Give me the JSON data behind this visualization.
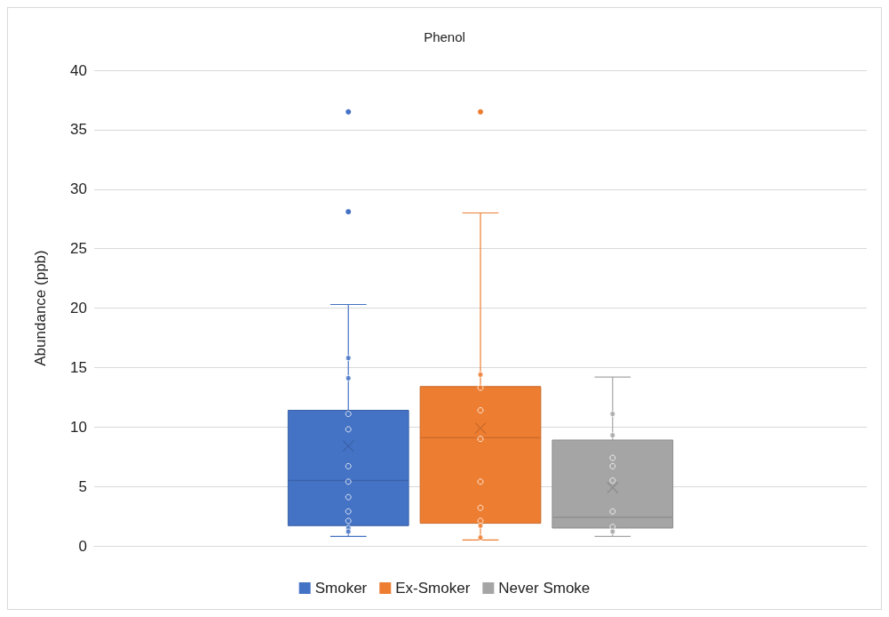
{
  "chart_data": {
    "type": "box",
    "title": "Phenol",
    "ylabel": "Abundance (ppb)",
    "categories": [
      null
    ],
    "ylim": [
      0,
      40
    ],
    "yticks": [
      0,
      5,
      10,
      15,
      20,
      25,
      30,
      35,
      40
    ],
    "grid": "y",
    "legend": "bottom",
    "marker": "circle",
    "series": [
      {
        "name": "Smoker",
        "color": "#4472c4",
        "boxes": [
          {
            "low": 0.8,
            "q1": 1.7,
            "median": 5.5,
            "q3": 11.4,
            "high": 20.3,
            "mean": 8.4,
            "outliers": [
              28.1,
              36.5
            ]
          }
        ]
      },
      {
        "name": "Ex-Smoker",
        "color": "#ed7d31",
        "boxes": [
          {
            "low": 0.5,
            "q1": 1.9,
            "median": 9.1,
            "q3": 13.4,
            "high": 28.0,
            "mean": 9.9,
            "outliers": [
              36.5
            ]
          }
        ]
      },
      {
        "name": "Never Smoke",
        "color": "#a5a5a5",
        "boxes": [
          {
            "low": 0.8,
            "q1": 1.5,
            "median": 2.4,
            "q3": 8.9,
            "high": 14.2,
            "mean": 4.9
          }
        ]
      },
      {
        "type": "scatter",
        "color": "#4472c4",
        "x": [
          null,
          null,
          null,
          null,
          null,
          null,
          null,
          null,
          null,
          null,
          null
        ],
        "values": [
          15.8,
          14.1,
          11.1,
          9.8,
          6.7,
          5.4,
          4.1,
          2.9,
          2.1,
          1.5,
          1.2
        ]
      },
      {
        "type": "scatter",
        "color": "#ed7d31",
        "x": [
          null,
          null,
          null,
          null,
          null,
          null,
          null,
          null,
          null
        ],
        "values": [
          14.4,
          13.3,
          11.4,
          9.0,
          5.4,
          3.2,
          2.1,
          1.7,
          0.7
        ]
      },
      {
        "type": "scatter",
        "color": "#a5a5a5",
        "x": [
          null,
          null,
          null,
          null,
          null,
          null,
          null,
          null
        ],
        "values": [
          11.1,
          9.3,
          7.4,
          6.7,
          5.5,
          2.9,
          1.6,
          1.2
        ]
      }
    ]
  }
}
